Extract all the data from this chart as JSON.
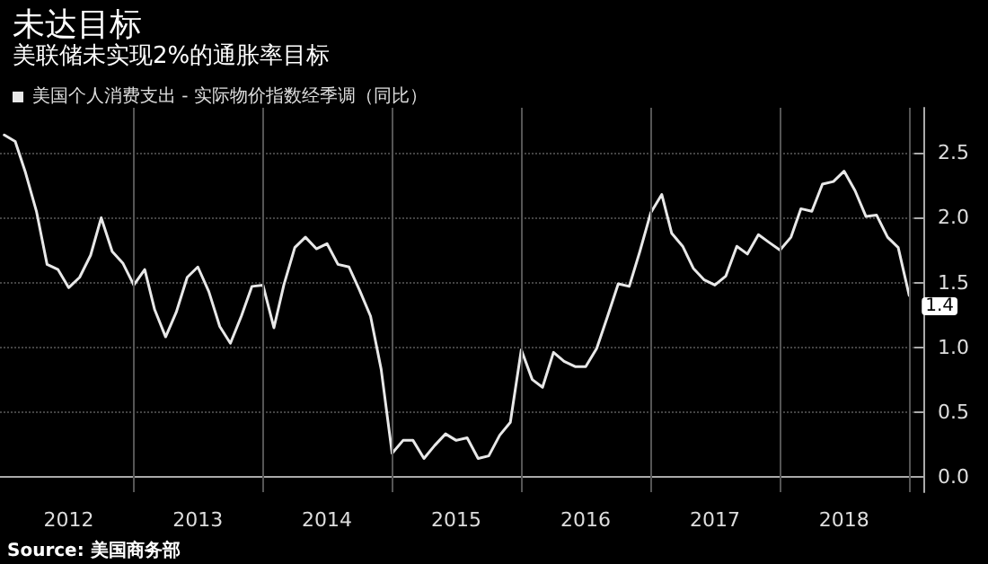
{
  "chart_data": {
    "type": "line",
    "title": "未达目标",
    "subtitle": "美联储未实现2%的通胀率目标",
    "x": [
      "2012-01",
      "2012-02",
      "2012-03",
      "2012-04",
      "2012-05",
      "2012-06",
      "2012-07",
      "2012-08",
      "2012-09",
      "2012-10",
      "2012-11",
      "2012-12",
      "2013-01",
      "2013-02",
      "2013-03",
      "2013-04",
      "2013-05",
      "2013-06",
      "2013-07",
      "2013-08",
      "2013-09",
      "2013-10",
      "2013-11",
      "2013-12",
      "2014-01",
      "2014-02",
      "2014-03",
      "2014-04",
      "2014-05",
      "2014-06",
      "2014-07",
      "2014-08",
      "2014-09",
      "2014-10",
      "2014-11",
      "2014-12",
      "2015-01",
      "2015-02",
      "2015-03",
      "2015-04",
      "2015-05",
      "2015-06",
      "2015-07",
      "2015-08",
      "2015-09",
      "2015-10",
      "2015-11",
      "2015-12",
      "2016-01",
      "2016-02",
      "2016-03",
      "2016-04",
      "2016-05",
      "2016-06",
      "2016-07",
      "2016-08",
      "2016-09",
      "2016-10",
      "2016-11",
      "2016-12",
      "2017-01",
      "2017-02",
      "2017-03",
      "2017-04",
      "2017-05",
      "2017-06",
      "2017-07",
      "2017-08",
      "2017-09",
      "2017-10",
      "2017-11",
      "2017-12",
      "2018-01",
      "2018-02",
      "2018-03",
      "2018-04",
      "2018-05",
      "2018-06",
      "2018-07",
      "2018-08",
      "2018-09",
      "2018-10",
      "2018-11",
      "2018-12",
      "2019-01"
    ],
    "series": [
      {
        "name": "美国个人消费支出 - 实际物价指数经季调（同比）",
        "color": "#e8e8e8",
        "values": [
          2.64,
          2.59,
          2.35,
          2.05,
          1.64,
          1.6,
          1.46,
          1.54,
          1.71,
          2.0,
          1.74,
          1.65,
          1.48,
          1.6,
          1.29,
          1.08,
          1.27,
          1.54,
          1.62,
          1.43,
          1.16,
          1.03,
          1.24,
          1.47,
          1.48,
          1.15,
          1.48,
          1.77,
          1.85,
          1.76,
          1.8,
          1.64,
          1.62,
          1.44,
          1.24,
          0.83,
          0.18,
          0.28,
          0.28,
          0.14,
          0.24,
          0.33,
          0.28,
          0.3,
          0.14,
          0.16,
          0.32,
          0.42,
          0.98,
          0.75,
          0.69,
          0.96,
          0.89,
          0.85,
          0.85,
          0.99,
          1.24,
          1.49,
          1.47,
          1.74,
          2.04,
          2.18,
          1.88,
          1.78,
          1.61,
          1.52,
          1.48,
          1.55,
          1.78,
          1.72,
          1.87,
          1.81,
          1.75,
          1.85,
          2.07,
          2.05,
          2.26,
          2.28,
          2.36,
          2.21,
          2.01,
          2.02,
          1.85,
          1.77,
          1.4
        ],
        "value_labels": [
          null,
          null,
          null,
          null,
          null,
          null,
          null,
          null,
          null,
          null,
          null,
          null,
          null,
          null,
          null,
          null,
          null,
          null,
          null,
          null,
          null,
          null,
          null,
          null,
          null,
          null,
          null,
          null,
          null,
          null,
          null,
          null,
          null,
          null,
          null,
          null,
          null,
          null,
          null,
          null,
          null,
          null,
          null,
          null,
          null,
          null,
          null,
          null,
          null,
          null,
          null,
          null,
          null,
          null,
          null,
          null,
          null,
          null,
          null,
          null,
          null,
          null,
          null,
          null,
          null,
          null,
          null,
          null,
          null,
          null,
          null,
          null,
          null,
          null,
          null,
          null,
          null,
          null,
          null,
          null,
          null,
          null,
          null,
          null,
          "1.4"
        ]
      }
    ],
    "xlim": [
      "2011-12-20",
      "2019-02-10"
    ],
    "xticks": [
      {
        "value": "2013-01-01",
        "label": null
      },
      {
        "value": "2014-01-01",
        "label": null
      },
      {
        "value": "2015-01-01",
        "label": null
      },
      {
        "value": "2016-01-01",
        "label": null
      },
      {
        "value": "2017-01-01",
        "label": null
      },
      {
        "value": "2018-01-01",
        "label": null
      },
      {
        "value": "2019-01-01",
        "label": null
      },
      {
        "value": "2012-07-01",
        "label": "2012"
      },
      {
        "value": "2013-07-01",
        "label": "2013"
      },
      {
        "value": "2014-07-01",
        "label": "2014"
      },
      {
        "value": "2015-07-01",
        "label": "2015"
      },
      {
        "value": "2016-07-01",
        "label": "2016"
      },
      {
        "value": "2017-07-01",
        "label": "2017"
      },
      {
        "value": "2018-07-01",
        "label": "2018"
      }
    ],
    "ylim": [
      -0.12,
      2.85
    ],
    "yticks": [
      {
        "value": 0,
        "label": "0.0"
      },
      {
        "value": 0.5,
        "label": "0.5"
      },
      {
        "value": 1,
        "label": "1.0"
      },
      {
        "value": 1.5,
        "label": "1.5"
      },
      {
        "value": 2,
        "label": "2.0"
      },
      {
        "value": 2.5,
        "label": "2.5"
      }
    ],
    "grid": true,
    "legend": "top left",
    "marker": "none",
    "line_style": "solid",
    "annotations": [
      "Source: 美国商务部"
    ]
  }
}
